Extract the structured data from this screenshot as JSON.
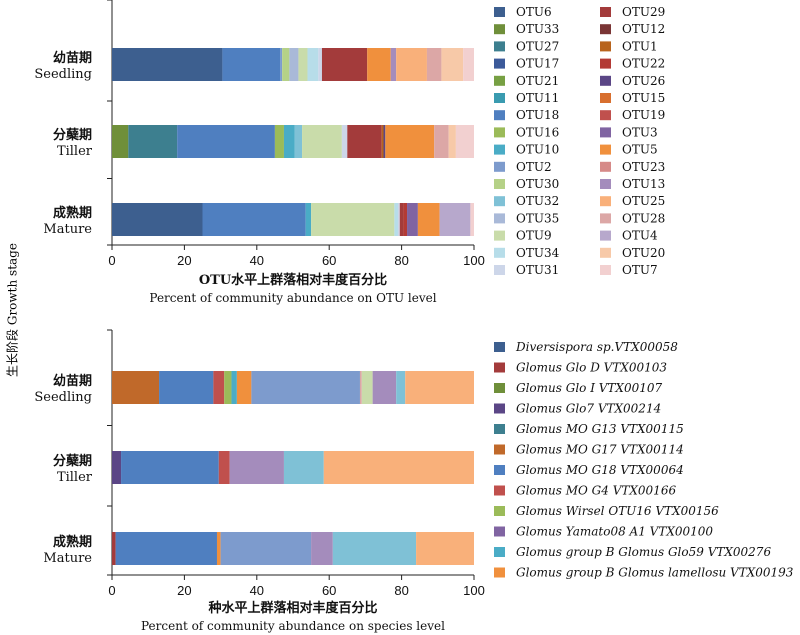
{
  "y_axis_title": "生长阶段 Growth stage",
  "chart_data": [
    {
      "type": "bar",
      "orientation": "horizontal",
      "stacked": true,
      "xlabel_cn": "OTU水平上群落相对丰度百分比",
      "xlabel_en": "Percent of community abundance on OTU level",
      "xlim": [
        0,
        100
      ],
      "xticks": [
        "0",
        "20",
        "40",
        "60",
        "80",
        "100"
      ],
      "categories": [
        {
          "cn": "幼苗期",
          "en": "Seedling"
        },
        {
          "cn": "分蘖期",
          "en": "Tiller"
        },
        {
          "cn": "成熟期",
          "en": "Mature"
        }
      ],
      "legend_position": "right",
      "series": [
        {
          "name": "OTU6",
          "color": "#3d5f8f",
          "values": [
            30.5,
            0,
            25
          ]
        },
        {
          "name": "OTU33",
          "color": "#6f8f3a",
          "values": [
            0,
            4.5,
            0
          ]
        },
        {
          "name": "OTU27",
          "color": "#3d7f8f",
          "values": [
            0,
            13.5,
            0
          ]
        },
        {
          "name": "OTU17",
          "color": "#3c5a9a",
          "values": [
            0,
            0,
            0
          ]
        },
        {
          "name": "OTU21",
          "color": "#77a043",
          "values": [
            0,
            0,
            0
          ]
        },
        {
          "name": "OTU11",
          "color": "#3a9bb0",
          "values": [
            0,
            0,
            0
          ]
        },
        {
          "name": "OTU18",
          "color": "#4f7fc0",
          "values": [
            16,
            27,
            28.5
          ]
        },
        {
          "name": "OTU16",
          "color": "#9bbb59",
          "values": [
            0,
            2.5,
            0
          ]
        },
        {
          "name": "OTU10",
          "color": "#4aacc6",
          "values": [
            0,
            3,
            1.5
          ]
        },
        {
          "name": "OTU2",
          "color": "#7d9bcd",
          "values": [
            0.5,
            0,
            0
          ]
        },
        {
          "name": "OTU30",
          "color": "#b5d187",
          "values": [
            2,
            0,
            0
          ]
        },
        {
          "name": "OTU32",
          "color": "#7fc1d6",
          "values": [
            0,
            2,
            0
          ]
        },
        {
          "name": "OTU35",
          "color": "#a9b9d8",
          "values": [
            2.5,
            0,
            0
          ]
        },
        {
          "name": "OTU9",
          "color": "#c9dcaa",
          "values": [
            2.5,
            11,
            23
          ]
        },
        {
          "name": "OTU34",
          "color": "#b7dde9",
          "values": [
            3,
            0,
            1
          ]
        },
        {
          "name": "OTU31",
          "color": "#cdd6e9",
          "values": [
            1,
            1.5,
            0.5
          ]
        },
        {
          "name": "OTU29",
          "color": "#a33b3b",
          "values": [
            12.5,
            9.5,
            1
          ]
        },
        {
          "name": "OTU12",
          "color": "#7a3535",
          "values": [
            0,
            0,
            0
          ]
        },
        {
          "name": "OTU1",
          "color": "#b8641d",
          "values": [
            0,
            0.5,
            0
          ]
        },
        {
          "name": "OTU22",
          "color": "#b33a35",
          "values": [
            0,
            0,
            1
          ]
        },
        {
          "name": "OTU26",
          "color": "#5b4686",
          "values": [
            0,
            0.5,
            0
          ]
        },
        {
          "name": "OTU15",
          "color": "#d86f2f",
          "values": [
            0,
            0,
            0
          ]
        },
        {
          "name": "OTU19",
          "color": "#c0504d",
          "values": [
            0,
            0,
            0
          ]
        },
        {
          "name": "OTU3",
          "color": "#8064a2",
          "values": [
            0,
            0,
            3
          ]
        },
        {
          "name": "OTU5",
          "color": "#f0903d",
          "values": [
            6.5,
            13.5,
            6
          ]
        },
        {
          "name": "OTU23",
          "color": "#d68a88",
          "values": [
            0,
            0,
            0
          ]
        },
        {
          "name": "OTU13",
          "color": "#a48cbc",
          "values": [
            1.5,
            0,
            0
          ]
        },
        {
          "name": "OTU25",
          "color": "#f9b07a",
          "values": [
            8.5,
            0,
            0
          ]
        },
        {
          "name": "OTU28",
          "color": "#dca7a6",
          "values": [
            4,
            4,
            0
          ]
        },
        {
          "name": "OTU4",
          "color": "#b7a8cc",
          "values": [
            0,
            0,
            8.5
          ]
        },
        {
          "name": "OTU20",
          "color": "#f7c9a8",
          "values": [
            6,
            2,
            0
          ]
        },
        {
          "name": "OTU7",
          "color": "#f2d0d0",
          "values": [
            3,
            5,
            1
          ]
        }
      ]
    },
    {
      "type": "bar",
      "orientation": "horizontal",
      "stacked": true,
      "xlabel_cn": "种水平上群落相对丰度百分比",
      "xlabel_en": "Percent of community abundance on species level",
      "xlim": [
        0,
        100
      ],
      "xticks": [
        "0",
        "20",
        "40",
        "60",
        "80",
        "100"
      ],
      "categories": [
        {
          "cn": "幼苗期",
          "en": "Seedling"
        },
        {
          "cn": "分蘖期",
          "en": "Tiller"
        },
        {
          "cn": "成熟期",
          "en": "Mature"
        }
      ],
      "legend_position": "right",
      "series": [
        {
          "name": "Diversispora sp.VTX00058",
          "color": "#3d5f8f",
          "values": [
            0,
            0,
            0
          ]
        },
        {
          "name": "Glomus Glo D VTX00103",
          "color": "#a33b3b",
          "values": [
            0,
            0,
            1
          ]
        },
        {
          "name": "Glomus Glo I VTX00107",
          "color": "#6f8f3a",
          "values": [
            0,
            0,
            0
          ]
        },
        {
          "name": "Glomus Glo7 VTX00214",
          "color": "#5b4686",
          "values": [
            0,
            2.5,
            0
          ]
        },
        {
          "name": "Glomus MO G13 VTX00115",
          "color": "#3d7f8f",
          "values": [
            0,
            0,
            0
          ]
        },
        {
          "name": "Glomus MO G17 VTX00114",
          "color": "#c0692a",
          "values": [
            13,
            0,
            0
          ]
        },
        {
          "name": "Glomus MO G18 VTX00064",
          "color": "#4f7fc0",
          "values": [
            15,
            27,
            28
          ]
        },
        {
          "name": "Glomus MO G4 VTX00166",
          "color": "#c0504d",
          "values": [
            3,
            3,
            0
          ]
        },
        {
          "name": "Glomus Wirsel OTU16 VTX00156",
          "color": "#9bbb59",
          "values": [
            2,
            0,
            0
          ]
        },
        {
          "name": "Glomus Yamato08 A1 VTX00100",
          "color": "#8064a2",
          "values": [
            0,
            0,
            0
          ]
        },
        {
          "name": "Glomus group B Glomus Glo59 VTX00276",
          "color": "#4aacc6",
          "values": [
            1.5,
            0,
            0
          ]
        },
        {
          "name": "Glomus group B Glomus lamellosu VTX00193",
          "color": "#f0903d",
          "values": [
            4,
            0,
            1
          ]
        },
        {
          "name": "",
          "color": "#7d9bcd",
          "values": [
            30,
            0,
            25
          ]
        },
        {
          "name": "",
          "color": "#dca7a6",
          "values": [
            0.5,
            0,
            0
          ]
        },
        {
          "name": "",
          "color": "#c9dcaa",
          "values": [
            3,
            0,
            0
          ]
        },
        {
          "name": "",
          "color": "#a48cbc",
          "values": [
            6.5,
            15,
            6
          ]
        },
        {
          "name": "",
          "color": "#7fc1d6",
          "values": [
            2.5,
            11,
            23
          ]
        },
        {
          "name": "",
          "color": "#f9b07a",
          "values": [
            19,
            41.5,
            16
          ]
        }
      ]
    }
  ]
}
